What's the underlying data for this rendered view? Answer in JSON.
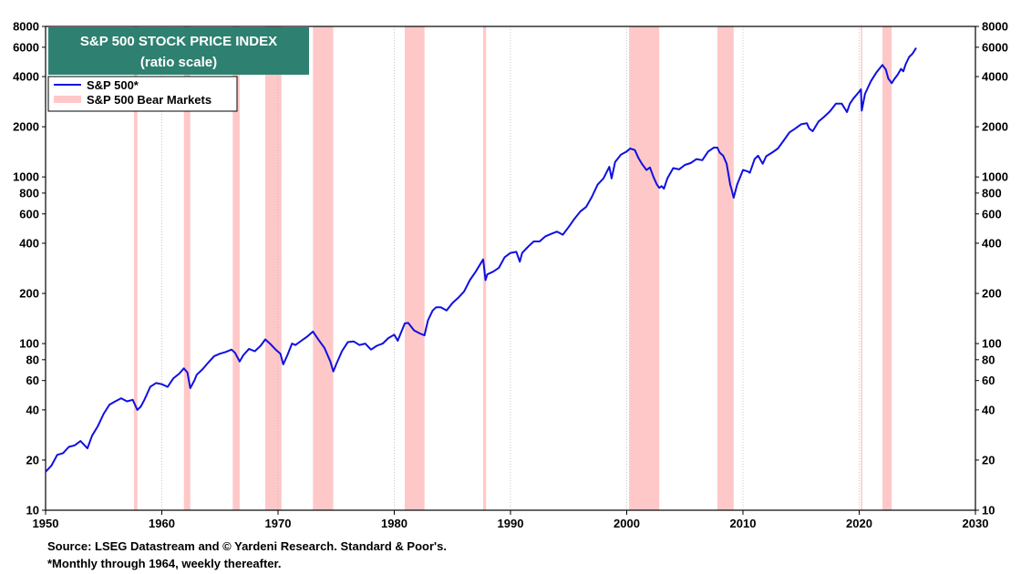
{
  "chart_data": {
    "type": "line",
    "title": "S&P 500 STOCK PRICE INDEX",
    "subtitle": "(ratio scale)",
    "xlabel": "",
    "ylabel": "",
    "yscale": "log",
    "xlim": [
      1950,
      2030
    ],
    "ylim": [
      10,
      8000
    ],
    "grid": "vertical dotted",
    "legend_position": "top-left",
    "x_ticks": [
      "1950",
      "1960",
      "1970",
      "1980",
      "1990",
      "2000",
      "2010",
      "2020",
      "2030"
    ],
    "y_ticks": [
      "10",
      "20",
      "40",
      "60",
      "80",
      "100",
      "200",
      "400",
      "600",
      "800",
      "1000",
      "2000",
      "4000",
      "6000",
      "8000"
    ],
    "series": [
      {
        "name": "S&P 500*",
        "color": "#1010e0",
        "x": [
          1950.0,
          1950.5,
          1951.0,
          1951.5,
          1952.0,
          1952.5,
          1953.0,
          1953.6,
          1954.0,
          1954.5,
          1955.0,
          1955.5,
          1956.0,
          1956.5,
          1957.0,
          1957.5,
          1957.9,
          1958.2,
          1958.5,
          1959.0,
          1959.5,
          1960.0,
          1960.5,
          1961.0,
          1961.5,
          1961.9,
          1962.2,
          1962.45,
          1962.8,
          1963.0,
          1963.5,
          1964.0,
          1964.5,
          1965.0,
          1965.5,
          1966.0,
          1966.3,
          1966.7,
          1967.0,
          1967.5,
          1968.0,
          1968.5,
          1968.9,
          1969.3,
          1969.8,
          1970.2,
          1970.45,
          1970.8,
          1971.2,
          1971.5,
          1972.0,
          1972.5,
          1973.0,
          1973.5,
          1974.0,
          1974.5,
          1974.75,
          1975.0,
          1975.5,
          1976.0,
          1976.5,
          1977.0,
          1977.5,
          1978.0,
          1978.5,
          1979.0,
          1979.5,
          1980.0,
          1980.3,
          1980.9,
          1981.2,
          1981.7,
          1982.2,
          1982.6,
          1982.9,
          1983.3,
          1983.6,
          1984.0,
          1984.5,
          1985.0,
          1985.5,
          1986.0,
          1986.5,
          1987.0,
          1987.65,
          1987.85,
          1988.0,
          1988.5,
          1989.0,
          1989.5,
          1990.0,
          1990.5,
          1990.8,
          1991.0,
          1991.5,
          1992.0,
          1992.5,
          1993.0,
          1993.5,
          1994.0,
          1994.5,
          1995.0,
          1995.5,
          1996.0,
          1996.5,
          1997.0,
          1997.5,
          1998.0,
          1998.5,
          1998.7,
          1999.0,
          1999.5,
          2000.0,
          2000.3,
          2000.7,
          2001.0,
          2001.3,
          2001.7,
          2002.0,
          2002.3,
          2002.6,
          2002.8,
          2003.0,
          2003.2,
          2003.5,
          2004.0,
          2004.5,
          2005.0,
          2005.5,
          2006.0,
          2006.5,
          2007.0,
          2007.5,
          2007.8,
          2008.0,
          2008.3,
          2008.6,
          2008.9,
          2009.0,
          2009.2,
          2009.5,
          2010.0,
          2010.4,
          2010.6,
          2011.0,
          2011.3,
          2011.7,
          2012.0,
          2012.5,
          2013.0,
          2013.5,
          2014.0,
          2014.5,
          2015.0,
          2015.5,
          2015.7,
          2016.0,
          2016.5,
          2017.0,
          2017.5,
          2018.0,
          2018.5,
          2018.95,
          2019.2,
          2019.5,
          2020.0,
          2020.15,
          2020.22,
          2020.5,
          2021.0,
          2021.5,
          2022.0,
          2022.3,
          2022.5,
          2022.8,
          2023.0,
          2023.3,
          2023.6,
          2023.8,
          2024.0,
          2024.3,
          2024.6,
          2024.9
        ],
        "values": [
          17,
          18.5,
          21.5,
          22,
          24,
          24.5,
          26,
          23.5,
          28,
          32,
          38,
          43,
          45,
          47,
          45,
          46,
          40,
          42,
          46,
          55,
          58,
          57,
          55,
          62,
          66,
          71,
          67,
          54,
          60,
          65,
          70,
          77,
          84,
          87,
          89,
          92,
          88,
          78,
          85,
          93,
          90,
          97,
          106,
          100,
          92,
          87,
          75,
          85,
          100,
          98,
          104,
          110,
          118,
          105,
          94,
          78,
          68,
          75,
          90,
          102,
          103,
          98,
          100,
          92,
          97,
          100,
          108,
          113,
          104,
          132,
          133,
          120,
          115,
          112,
          138,
          158,
          165,
          165,
          158,
          175,
          188,
          205,
          240,
          270,
          320,
          240,
          260,
          270,
          285,
          330,
          350,
          355,
          310,
          350,
          380,
          410,
          410,
          440,
          455,
          470,
          450,
          500,
          560,
          620,
          660,
          760,
          900,
          980,
          1150,
          980,
          1230,
          1360,
          1420,
          1480,
          1450,
          1300,
          1200,
          1100,
          1140,
          1000,
          900,
          860,
          880,
          850,
          980,
          1130,
          1110,
          1180,
          1210,
          1280,
          1260,
          1420,
          1500,
          1500,
          1400,
          1340,
          1200,
          900,
          850,
          750,
          900,
          1100,
          1080,
          1060,
          1280,
          1340,
          1200,
          1330,
          1400,
          1480,
          1650,
          1850,
          1950,
          2070,
          2100,
          1950,
          1880,
          2150,
          2300,
          2480,
          2750,
          2750,
          2450,
          2750,
          2950,
          3250,
          3350,
          2500,
          3150,
          3750,
          4250,
          4700,
          4400,
          3900,
          3650,
          3850,
          4100,
          4450,
          4300,
          4750,
          5250,
          5500,
          5950
        ]
      }
    ],
    "shaded_periods": {
      "name": "S&P 500 Bear Markets",
      "color": "#ffc8c8",
      "ranges": [
        [
          1957.6,
          1957.9
        ],
        [
          1961.9,
          1962.45
        ],
        [
          1966.1,
          1966.7
        ],
        [
          1968.9,
          1970.3
        ],
        [
          1973.0,
          1974.75
        ],
        [
          1980.9,
          1982.6
        ],
        [
          1987.65,
          1987.9
        ],
        [
          2000.2,
          2002.8
        ],
        [
          2007.8,
          2009.2
        ],
        [
          2020.15,
          2020.22
        ],
        [
          2022.0,
          2022.8
        ]
      ]
    }
  },
  "title_box": {
    "title": "S&P 500 STOCK PRICE INDEX",
    "subtitle": "(ratio scale)",
    "background": "#2e8070"
  },
  "legend": {
    "series_label": "S&P 500*",
    "bear_label": "S&P 500 Bear Markets"
  },
  "footer": {
    "source": "Source: LSEG Datastream and © Yardeni Research. Standard & Poor's.",
    "note": "*Monthly through 1964, weekly thereafter."
  }
}
